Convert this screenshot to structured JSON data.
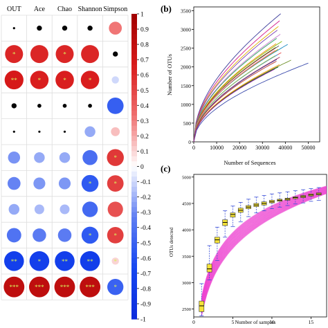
{
  "chart_data": [
    {
      "type": "heatmap",
      "columns": [
        "OUT",
        "Ace",
        "Chao",
        "Shannon",
        "Simpson"
      ],
      "colorbar": {
        "ticks": [
          "1",
          "0.9",
          "0.8",
          "0.7",
          "0.6",
          "0.5",
          "0.4",
          "0.3",
          "0.2",
          "0.1",
          "0",
          "-0.1",
          "-0.2",
          "-0.3",
          "-0.4",
          "-0.5",
          "-0.6",
          "-0.7",
          "-0.8",
          "-0.9",
          "-1"
        ],
        "range": [
          -1,
          1
        ],
        "colors": [
          "#0b2bdc",
          "#1546f0",
          "#5f7ef2",
          "#ffffff",
          "#ef6f6f",
          "#d81a1a",
          "#a00000"
        ]
      },
      "rows": [
        {
          "values": [
            0.0,
            0.05,
            0.05,
            0.05,
            0.32
          ],
          "stars": [
            "",
            "",
            "",
            "",
            ""
          ]
        },
        {
          "values": [
            0.62,
            0.62,
            0.62,
            0.62,
            -0.05
          ],
          "stars": [
            "*",
            "",
            "*",
            "",
            ""
          ]
        },
        {
          "values": [
            0.68,
            0.65,
            0.65,
            0.65,
            -0.1
          ],
          "stars": [
            "**",
            "*",
            "*",
            "*",
            ""
          ]
        },
        {
          "values": [
            0.05,
            0.03,
            0.03,
            0.03,
            -0.52
          ],
          "stars": [
            "",
            "",
            "",
            "",
            ""
          ]
        },
        {
          "values": [
            0.0,
            0.0,
            0.0,
            -0.22,
            0.15
          ],
          "stars": [
            "",
            "",
            "",
            "",
            ""
          ]
        },
        {
          "values": [
            -0.28,
            -0.22,
            -0.22,
            -0.43,
            0.55
          ],
          "stars": [
            "",
            "",
            "",
            "",
            "*"
          ]
        },
        {
          "values": [
            -0.32,
            -0.27,
            -0.27,
            -0.55,
            0.52
          ],
          "stars": [
            "",
            "",
            "",
            "*",
            "*"
          ]
        },
        {
          "values": [
            -0.22,
            -0.18,
            -0.18,
            -0.46,
            0.45
          ],
          "stars": [
            "",
            "",
            "",
            "",
            ""
          ]
        },
        {
          "values": [
            -0.4,
            -0.35,
            -0.35,
            -0.55,
            0.52
          ],
          "stars": [
            "",
            "",
            "",
            "*",
            "*"
          ]
        },
        {
          "values": [
            -0.75,
            -0.75,
            -0.75,
            -0.76,
            0.1
          ],
          "stars": [
            "**",
            "*",
            "**",
            "**",
            "*"
          ]
        },
        {
          "values": [
            0.82,
            0.82,
            0.82,
            0.82,
            -0.5
          ],
          "stars": [
            "***",
            "***",
            "***",
            "***",
            "*"
          ]
        }
      ]
    },
    {
      "type": "line",
      "panel_label": "(b)",
      "xlabel": "Number of Sequences",
      "ylabel": "Number of OTUs",
      "xlim": [
        0,
        55000
      ],
      "ylim": [
        0,
        3600
      ],
      "xticks": [
        "0",
        "10000",
        "20000",
        "30000",
        "40000",
        "50000"
      ],
      "yticks": [
        "0",
        "500",
        "1000",
        "1500",
        "2000",
        "2500",
        "3000",
        "3500"
      ],
      "series": [
        {
          "xmax": 38000,
          "ymax": 3420,
          "color": "#3b3b9a"
        },
        {
          "xmax": 37500,
          "ymax": 3230,
          "color": "#d31d8e"
        },
        {
          "xmax": 37000,
          "ymax": 3080,
          "color": "#e0b000"
        },
        {
          "xmax": 36500,
          "ymax": 2980,
          "color": "#7a3fb3"
        },
        {
          "xmax": 37800,
          "ymax": 2870,
          "color": "#c87ad0"
        },
        {
          "xmax": 36200,
          "ymax": 2760,
          "color": "#23a35a"
        },
        {
          "xmax": 38500,
          "ymax": 2680,
          "color": "#7ab800"
        },
        {
          "xmax": 36000,
          "ymax": 2620,
          "color": "#f08c00"
        },
        {
          "xmax": 41000,
          "ymax": 2600,
          "color": "#1a8bc1"
        },
        {
          "xmax": 37200,
          "ymax": 2560,
          "color": "#555555"
        },
        {
          "xmax": 35800,
          "ymax": 2520,
          "color": "#8a4a0f"
        },
        {
          "xmax": 36800,
          "ymax": 2470,
          "color": "#d4a800"
        },
        {
          "xmax": 35500,
          "ymax": 2440,
          "color": "#ff66aa"
        },
        {
          "xmax": 38200,
          "ymax": 2380,
          "color": "#e33d3d"
        },
        {
          "xmax": 36700,
          "ymax": 2330,
          "color": "#2a9df4"
        },
        {
          "xmax": 35600,
          "ymax": 2300,
          "color": "#8bc34a"
        },
        {
          "xmax": 37600,
          "ymax": 2260,
          "color": "#b03060"
        },
        {
          "xmax": 36300,
          "ymax": 2200,
          "color": "#444499"
        },
        {
          "xmax": 42500,
          "ymax": 2180,
          "color": "#6b8e23"
        },
        {
          "xmax": 36100,
          "ymax": 2150,
          "color": "#c0392b"
        },
        {
          "xmax": 50000,
          "ymax": 2100,
          "color": "#3949ab"
        },
        {
          "xmax": 37400,
          "ymax": 2060,
          "color": "#ff8f00"
        },
        {
          "xmax": 36900,
          "ymax": 2000,
          "color": "#1b5e20"
        },
        {
          "xmax": 35400,
          "ymax": 1940,
          "color": "#9c27b0"
        }
      ]
    },
    {
      "type": "box",
      "panel_label": "(c)",
      "xlabel": "Number of samples",
      "ylabel": "OTUs detected",
      "xlim": [
        0,
        17
      ],
      "ylim": [
        2350,
        5050
      ],
      "xticks": [
        "0",
        "5",
        "10",
        "15"
      ],
      "yticks": [
        "2500",
        "3000",
        "3500",
        "4000",
        "4500",
        "5000"
      ],
      "box_color": "#f5e33a",
      "band_color": "#ec3fd0",
      "boxes": [
        {
          "x": 1,
          "min": 2370,
          "q1": 2450,
          "median": 2560,
          "q3": 2650,
          "max": 2980
        },
        {
          "x": 2,
          "min": 3050,
          "q1": 3200,
          "median": 3260,
          "q3": 3350,
          "max": 3700
        },
        {
          "x": 3,
          "min": 3420,
          "q1": 3750,
          "median": 3810,
          "q3": 3860,
          "max": 4050
        },
        {
          "x": 4,
          "min": 3860,
          "q1": 4080,
          "median": 4140,
          "q3": 4190,
          "max": 4360
        },
        {
          "x": 5,
          "min": 4060,
          "q1": 4240,
          "median": 4290,
          "q3": 4320,
          "max": 4450
        },
        {
          "x": 6,
          "min": 4150,
          "q1": 4330,
          "median": 4370,
          "q3": 4410,
          "max": 4520
        },
        {
          "x": 7,
          "min": 4250,
          "q1": 4400,
          "median": 4430,
          "q3": 4460,
          "max": 4580
        },
        {
          "x": 8,
          "min": 4320,
          "q1": 4440,
          "median": 4470,
          "q3": 4500,
          "max": 4620
        },
        {
          "x": 9,
          "min": 4360,
          "q1": 4470,
          "median": 4500,
          "q3": 4530,
          "max": 4650
        },
        {
          "x": 10,
          "min": 4400,
          "q1": 4510,
          "median": 4530,
          "q3": 4560,
          "max": 4680
        },
        {
          "x": 11,
          "min": 4430,
          "q1": 4540,
          "median": 4560,
          "q3": 4580,
          "max": 4700
        },
        {
          "x": 12,
          "min": 4460,
          "q1": 4560,
          "median": 4580,
          "q3": 4600,
          "max": 4720
        },
        {
          "x": 13,
          "min": 4490,
          "q1": 4590,
          "median": 4610,
          "q3": 4625,
          "max": 4740
        },
        {
          "x": 14,
          "min": 4510,
          "q1": 4610,
          "median": 4630,
          "q3": 4650,
          "max": 4760
        },
        {
          "x": 15,
          "min": 4540,
          "q1": 4640,
          "median": 4660,
          "q3": 4680,
          "max": 4780
        },
        {
          "x": 16,
          "min": 4560,
          "q1": 4660,
          "median": 4680,
          "q3": 4700,
          "max": 4800
        }
      ]
    }
  ]
}
